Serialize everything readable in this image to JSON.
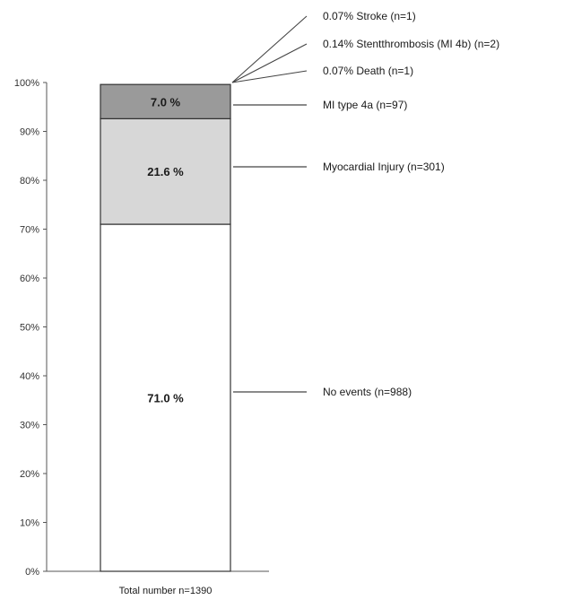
{
  "chart_data": {
    "type": "bar",
    "stacked": true,
    "categories": [
      "Total number n=1390"
    ],
    "ylim": [
      0,
      100
    ],
    "yticks": [
      0,
      10,
      20,
      30,
      40,
      50,
      60,
      70,
      80,
      90,
      100
    ],
    "ytick_labels": [
      "0%",
      "10%",
      "20%",
      "30%",
      "40%",
      "50%",
      "60%",
      "70%",
      "80%",
      "90%",
      "100%"
    ],
    "segments": [
      {
        "key": "none",
        "value": 71.0,
        "label": "71.0 %",
        "color": "#ffffff",
        "annotation": "No events (n=988)"
      },
      {
        "key": "injury",
        "value": 21.6,
        "label": "21.6 %",
        "color": "#d7d7d7",
        "annotation": "Myocardial Injury (n=301)"
      },
      {
        "key": "mi4a",
        "value": 7.0,
        "label": "7.0 %",
        "color": "#9a9a9a",
        "annotation": "MI type 4a (n=97)"
      }
    ],
    "small_events": [
      {
        "key": "stroke",
        "value": 0.07,
        "annotation": "0.07% Stroke (n=1)"
      },
      {
        "key": "stent",
        "value": 0.14,
        "annotation": "0.14% Stentthrombosis (MI 4b) (n=2)"
      },
      {
        "key": "death",
        "value": 0.07,
        "annotation": "0.07% Death (n=1)"
      }
    ]
  }
}
